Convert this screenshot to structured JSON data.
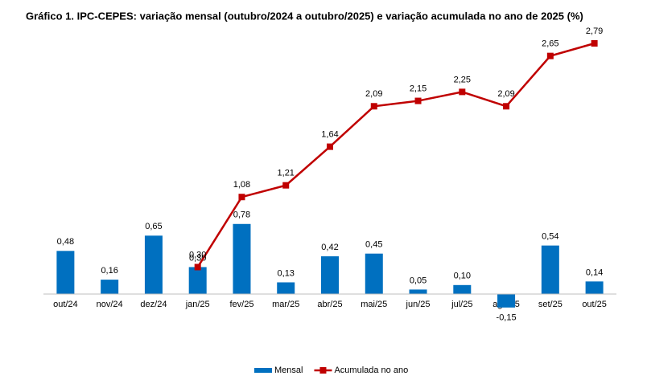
{
  "chart_data": {
    "type": "bar-line",
    "title": "Gráfico 1. IPC-CEPES: variação mensal (outubro/2024 a outubro/2025) e variação acumulada no ano de 2025 (%)",
    "categories": [
      "out/24",
      "nov/24",
      "dez/24",
      "jan/25",
      "fev/25",
      "mar/25",
      "abr/25",
      "mai/25",
      "jun/25",
      "jul/25",
      "ago/25",
      "set/25",
      "out/25"
    ],
    "series": [
      {
        "name": "Mensal",
        "type": "bar",
        "color": "#0070c0",
        "values": [
          0.48,
          0.16,
          0.65,
          0.3,
          0.78,
          0.13,
          0.42,
          0.45,
          0.05,
          0.1,
          -0.15,
          0.54,
          0.14
        ],
        "value_labels": [
          "0,48",
          "0,16",
          "0,65",
          "0,30",
          "0,78",
          "0,13",
          "0,42",
          "0,45",
          "0,05",
          "0,10",
          "-0,15",
          "0,54",
          "0,14"
        ]
      },
      {
        "name": "Acumulada no ano",
        "type": "line",
        "color": "#c00000",
        "values": [
          null,
          null,
          null,
          0.3,
          1.08,
          1.21,
          1.64,
          2.09,
          2.15,
          2.25,
          2.09,
          2.65,
          2.79
        ],
        "value_labels": [
          null,
          null,
          null,
          "0,30",
          "1,08",
          "1,21",
          "1,64",
          "2,09",
          "2,15",
          "2,25",
          "2,09",
          "2,65",
          "2,79"
        ]
      }
    ],
    "legend": "bottom"
  }
}
